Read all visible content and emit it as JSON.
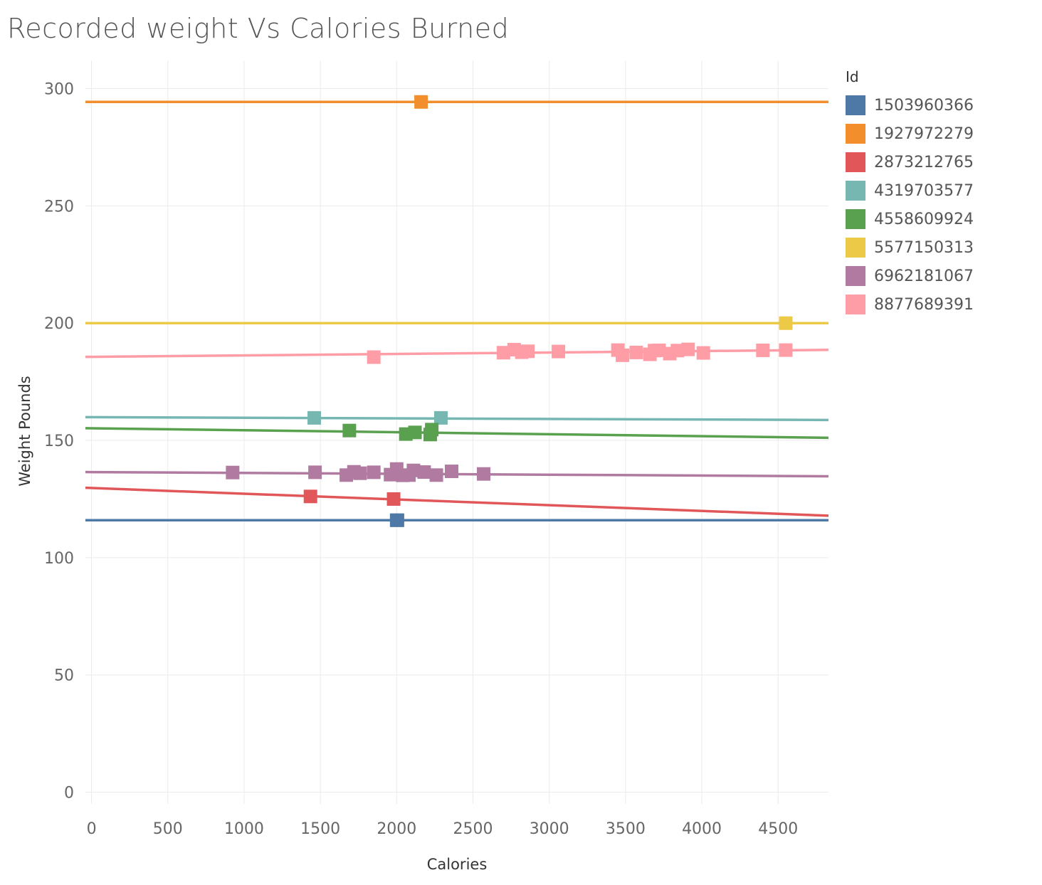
{
  "chart_data": {
    "type": "scatter",
    "title": "Recorded weight Vs Calories Burned",
    "xlabel": "Calories",
    "ylabel": "Weight Pounds",
    "xlim": [
      -40,
      4830
    ],
    "ylim": [
      -5,
      312
    ],
    "xticks": [
      0,
      500,
      1000,
      1500,
      2000,
      2500,
      3000,
      3500,
      4000,
      4500
    ],
    "yticks": [
      0,
      50,
      100,
      150,
      200,
      250,
      300
    ],
    "grid": true,
    "legend": {
      "title": "Id",
      "position": "right"
    },
    "series": [
      {
        "name": "1503960366",
        "color": "#4e79a7",
        "points": [
          [
            2000,
            115.96
          ],
          [
            2005,
            115.96
          ]
        ],
        "trend": [
          115.96,
          115.96
        ]
      },
      {
        "name": "1927972279",
        "color": "#f28e2b",
        "points": [
          [
            2160,
            294.32
          ]
        ],
        "trend": [
          294.32,
          294.32
        ]
      },
      {
        "name": "2873212765",
        "color": "#e15759",
        "points": [
          [
            1435,
            126.1
          ],
          [
            1980,
            125.0
          ]
        ],
        "trend": [
          129.8,
          117.9
        ]
      },
      {
        "name": "4319703577",
        "color": "#76b7b2",
        "points": [
          [
            1460,
            159.6
          ],
          [
            2290,
            159.6
          ]
        ],
        "trend": [
          159.9,
          158.7
        ]
      },
      {
        "name": "4558609924",
        "color": "#59a14f",
        "points": [
          [
            1690,
            154.2
          ],
          [
            2060,
            152.7
          ],
          [
            2120,
            153.4
          ],
          [
            2220,
            152.5
          ],
          [
            2230,
            154.6
          ]
        ],
        "trend": [
          155.2,
          151.1
        ]
      },
      {
        "name": "5577150313",
        "color": "#edc948",
        "points": [
          [
            4550,
            199.99
          ]
        ],
        "trend": [
          199.99,
          199.99
        ]
      },
      {
        "name": "6962181067",
        "color": "#b07aa1",
        "points": [
          [
            925,
            136.3
          ],
          [
            1465,
            136.4
          ],
          [
            1670,
            135.2
          ],
          [
            1720,
            136.6
          ],
          [
            1760,
            136.0
          ],
          [
            1850,
            136.4
          ],
          [
            1960,
            135.4
          ],
          [
            2000,
            137.8
          ],
          [
            2040,
            135.1
          ],
          [
            2080,
            135.2
          ],
          [
            2110,
            137.2
          ],
          [
            2180,
            136.5
          ],
          [
            2260,
            135.2
          ],
          [
            2360,
            136.8
          ],
          [
            2570,
            135.7
          ]
        ],
        "trend": [
          136.5,
          134.7
        ]
      },
      {
        "name": "8877689391",
        "color": "#ff9da7",
        "points": [
          [
            1850,
            185.5
          ],
          [
            2700,
            187.4
          ],
          [
            2770,
            188.7
          ],
          [
            2820,
            187.6
          ],
          [
            2860,
            188.0
          ],
          [
            3060,
            187.9
          ],
          [
            3450,
            188.5
          ],
          [
            3480,
            186.3
          ],
          [
            3570,
            187.5
          ],
          [
            3660,
            186.7
          ],
          [
            3690,
            188.3
          ],
          [
            3720,
            188.4
          ],
          [
            3790,
            187.0
          ],
          [
            3840,
            188.3
          ],
          [
            3910,
            188.8
          ],
          [
            4010,
            187.3
          ],
          [
            4400,
            188.4
          ],
          [
            4550,
            188.5
          ]
        ],
        "trend": [
          185.6,
          188.6
        ]
      }
    ]
  }
}
